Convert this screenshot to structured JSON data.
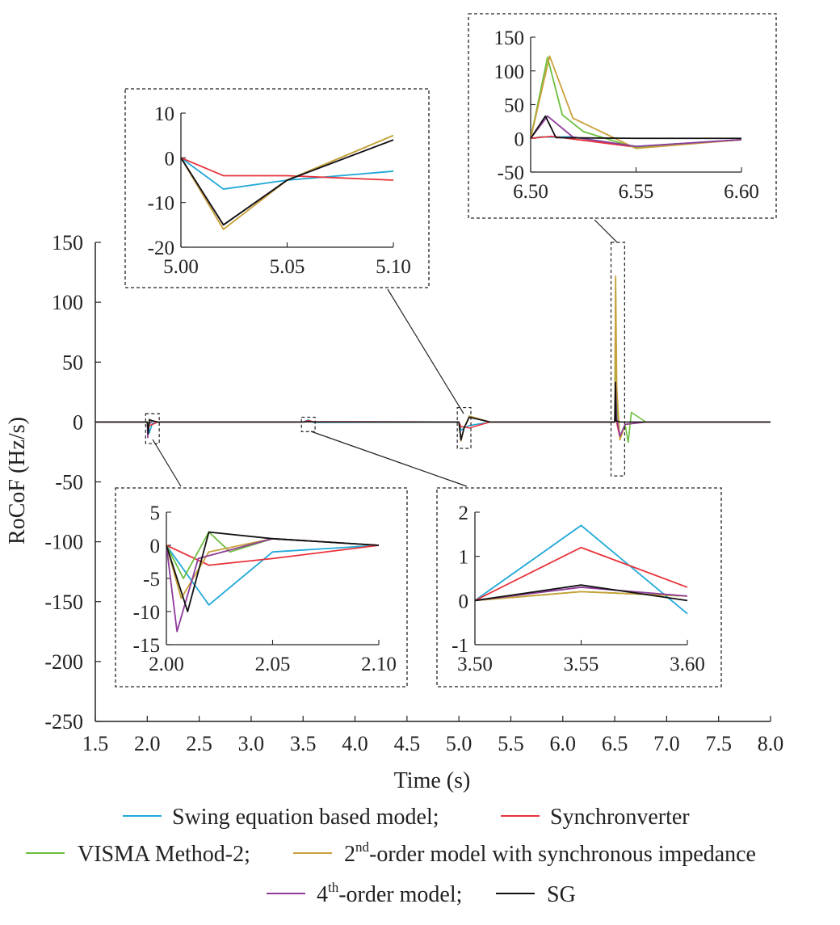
{
  "chart_data": {
    "type": "line",
    "xlabel": "Time (s)",
    "ylabel": "RoCoF (Hz/s)",
    "xlim": [
      1.5,
      8.0
    ],
    "ylim": [
      -250,
      150
    ],
    "xticks": [
      "1.5",
      "2.0",
      "2.5",
      "3.0",
      "3.5",
      "4.0",
      "4.5",
      "5.0",
      "5.5",
      "6.0",
      "6.5",
      "7.0",
      "7.5",
      "8.0"
    ],
    "yticks": [
      "150",
      "100",
      "50",
      "0",
      "-50",
      "-100",
      "-150",
      "-200",
      "-250"
    ],
    "grid": false,
    "legend_position": "bottom",
    "colors": {
      "swing": "#1fa8d8",
      "synch": "#e8333a",
      "visma": "#6cbf3e",
      "second": "#c9a03a",
      "fourth": "#8e3b9a",
      "sg": "#111111"
    },
    "legend": {
      "swing": "Swing equation based model;",
      "synch": "Synchronverter",
      "visma": "VISMA Method-2;",
      "second_base": "2",
      "second_sup": "nd",
      "second_rest": "-order model with synchronous impedance",
      "fourth_base": "4",
      "fourth_sup": "th",
      "fourth_rest": "-order model;",
      "sg": "SG"
    },
    "series": [
      {
        "key": "swing",
        "x": [
          1.5,
          2.0,
          2.02,
          2.05,
          2.1,
          2.3,
          3.5,
          3.55,
          3.6,
          5.0,
          5.02,
          5.05,
          5.1,
          5.3,
          6.5,
          6.505,
          6.52,
          6.55,
          6.6,
          6.8,
          8.0
        ],
        "y": [
          0,
          0,
          -9,
          -1,
          0,
          0,
          0,
          1.7,
          -0.3,
          0,
          -7,
          -5,
          -3,
          0,
          0,
          2,
          2,
          -12,
          -2,
          0,
          0
        ]
      },
      {
        "key": "synch",
        "x": [
          1.5,
          2.0,
          2.02,
          2.05,
          2.1,
          2.3,
          3.5,
          3.55,
          3.6,
          5.0,
          5.02,
          5.05,
          5.1,
          5.3,
          6.5,
          6.51,
          6.55,
          6.6,
          6.8,
          8.0
        ],
        "y": [
          0,
          0,
          -3,
          -2,
          0,
          0,
          0,
          1.2,
          0.3,
          0,
          -4,
          -4,
          -5,
          0,
          0,
          3,
          -13,
          -2,
          0,
          0
        ]
      },
      {
        "key": "visma",
        "x": [
          1.5,
          2.0,
          2.008,
          2.02,
          2.03,
          2.05,
          2.1,
          2.3,
          3.5,
          3.55,
          3.6,
          5.0,
          5.02,
          5.05,
          5.1,
          5.3,
          6.5,
          6.508,
          6.515,
          6.525,
          6.55,
          6.6,
          6.63,
          6.66,
          6.8,
          8.0
        ],
        "y": [
          0,
          0,
          -5,
          2,
          -1,
          1,
          0,
          0,
          0,
          0.2,
          0.1,
          0,
          -15,
          -5,
          5,
          0,
          0,
          120,
          35,
          10,
          -14,
          -2,
          -17,
          8,
          0,
          0
        ]
      },
      {
        "key": "second",
        "x": [
          1.5,
          2.0,
          2.007,
          2.02,
          2.05,
          2.1,
          2.3,
          3.5,
          3.55,
          3.6,
          5.0,
          5.02,
          5.05,
          5.1,
          5.3,
          6.5,
          6.509,
          6.52,
          6.55,
          6.6,
          6.8,
          8.0
        ],
        "y": [
          0,
          0,
          -8,
          -1,
          1,
          0,
          0,
          0,
          0.2,
          0.1,
          0,
          -16,
          -5,
          5,
          0,
          0,
          122,
          30,
          -15,
          -2,
          0,
          0
        ]
      },
      {
        "key": "fourth",
        "x": [
          1.5,
          2.0,
          2.005,
          2.015,
          2.05,
          2.1,
          2.3,
          3.5,
          3.55,
          3.6,
          5.0,
          5.02,
          5.05,
          5.1,
          5.3,
          6.5,
          6.508,
          6.52,
          6.55,
          6.6,
          6.8,
          8.0
        ],
        "y": [
          0,
          0,
          -13,
          -2,
          1,
          0,
          0,
          0,
          0.3,
          0.1,
          0,
          -15,
          -5,
          4,
          0,
          0,
          33,
          2,
          -12,
          -2,
          0,
          0
        ]
      },
      {
        "key": "sg",
        "x": [
          1.5,
          2.0,
          2.01,
          2.02,
          2.05,
          2.1,
          2.3,
          3.5,
          3.55,
          3.6,
          5.0,
          5.02,
          5.05,
          5.1,
          5.3,
          6.5,
          6.507,
          6.512,
          6.55,
          6.6,
          6.8,
          8.0
        ],
        "y": [
          0,
          0,
          -10,
          2,
          1,
          0,
          0,
          0,
          0.35,
          0,
          0,
          -15,
          -5,
          4,
          0,
          0,
          33,
          1,
          0,
          0,
          0,
          0
        ]
      }
    ],
    "insets": [
      {
        "xlim": [
          5.0,
          5.1
        ],
        "ylim": [
          -20,
          10
        ],
        "xticks": [
          "5.00",
          "5.05",
          "5.10"
        ],
        "yticks": [
          "10",
          "0",
          "-10",
          "-20"
        ]
      },
      {
        "xlim": [
          6.5,
          6.6
        ],
        "ylim": [
          -50,
          150
        ],
        "xticks": [
          "6.50",
          "6.55",
          "6.60"
        ],
        "yticks": [
          "150",
          "100",
          "50",
          "0",
          "-50"
        ]
      },
      {
        "xlim": [
          2.0,
          2.1
        ],
        "ylim": [
          -15,
          5
        ],
        "xticks": [
          "2.00",
          "2.05",
          "2.10"
        ],
        "yticks": [
          "5",
          "0",
          "-5",
          "-10",
          "-15"
        ]
      },
      {
        "xlim": [
          3.5,
          3.6
        ],
        "ylim": [
          -1,
          2
        ],
        "xticks": [
          "3.50",
          "3.55",
          "3.60"
        ],
        "yticks": [
          "2",
          "1",
          "0",
          "-1"
        ]
      }
    ]
  }
}
